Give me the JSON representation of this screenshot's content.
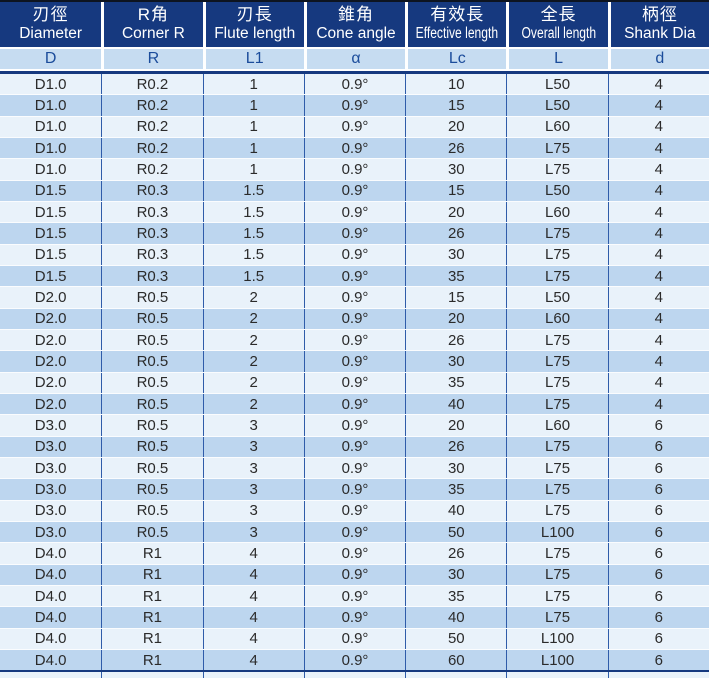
{
  "colors": {
    "header_bg": "#16397f",
    "header_text": "#ffffff",
    "units_bg": "#c6dcf1",
    "units_text": "#1b4c9b",
    "row_light": "#e9f2fa",
    "row_dark": "#bdd6ef",
    "grid_line": "#2f5ca9",
    "data_text": "#2b2b2b"
  },
  "table": {
    "columns": [
      {
        "zh": "刃徑",
        "en": "Diameter",
        "symbol": "D"
      },
      {
        "zh": "R角",
        "en": "Corner R",
        "symbol": "R"
      },
      {
        "zh": "刃長",
        "en": "Flute length",
        "symbol": "L1"
      },
      {
        "zh": "錐角",
        "en": "Cone angle",
        "symbol": "α"
      },
      {
        "zh": "有效長",
        "en": "Effective length",
        "symbol": "Lc"
      },
      {
        "zh": "全長",
        "en": "Overall length",
        "symbol": "L"
      },
      {
        "zh": "柄徑",
        "en": "Shank Dia",
        "symbol": "d"
      }
    ],
    "rows": [
      [
        "D1.0",
        "R0.2",
        "1",
        "0.9°",
        "10",
        "L50",
        "4"
      ],
      [
        "D1.0",
        "R0.2",
        "1",
        "0.9°",
        "15",
        "L50",
        "4"
      ],
      [
        "D1.0",
        "R0.2",
        "1",
        "0.9°",
        "20",
        "L60",
        "4"
      ],
      [
        "D1.0",
        "R0.2",
        "1",
        "0.9°",
        "26",
        "L75",
        "4"
      ],
      [
        "D1.0",
        "R0.2",
        "1",
        "0.9°",
        "30",
        "L75",
        "4"
      ],
      [
        "D1.5",
        "R0.3",
        "1.5",
        "0.9°",
        "15",
        "L50",
        "4"
      ],
      [
        "D1.5",
        "R0.3",
        "1.5",
        "0.9°",
        "20",
        "L60",
        "4"
      ],
      [
        "D1.5",
        "R0.3",
        "1.5",
        "0.9°",
        "26",
        "L75",
        "4"
      ],
      [
        "D1.5",
        "R0.3",
        "1.5",
        "0.9°",
        "30",
        "L75",
        "4"
      ],
      [
        "D1.5",
        "R0.3",
        "1.5",
        "0.9°",
        "35",
        "L75",
        "4"
      ],
      [
        "D2.0",
        "R0.5",
        "2",
        "0.9°",
        "15",
        "L50",
        "4"
      ],
      [
        "D2.0",
        "R0.5",
        "2",
        "0.9°",
        "20",
        "L60",
        "4"
      ],
      [
        "D2.0",
        "R0.5",
        "2",
        "0.9°",
        "26",
        "L75",
        "4"
      ],
      [
        "D2.0",
        "R0.5",
        "2",
        "0.9°",
        "30",
        "L75",
        "4"
      ],
      [
        "D2.0",
        "R0.5",
        "2",
        "0.9°",
        "35",
        "L75",
        "4"
      ],
      [
        "D2.0",
        "R0.5",
        "2",
        "0.9°",
        "40",
        "L75",
        "4"
      ],
      [
        "D3.0",
        "R0.5",
        "3",
        "0.9°",
        "20",
        "L60",
        "6"
      ],
      [
        "D3.0",
        "R0.5",
        "3",
        "0.9°",
        "26",
        "L75",
        "6"
      ],
      [
        "D3.0",
        "R0.5",
        "3",
        "0.9°",
        "30",
        "L75",
        "6"
      ],
      [
        "D3.0",
        "R0.5",
        "3",
        "0.9°",
        "35",
        "L75",
        "6"
      ],
      [
        "D3.0",
        "R0.5",
        "3",
        "0.9°",
        "40",
        "L75",
        "6"
      ],
      [
        "D3.0",
        "R0.5",
        "3",
        "0.9°",
        "50",
        "L100",
        "6"
      ],
      [
        "D4.0",
        "R1",
        "4",
        "0.9°",
        "26",
        "L75",
        "6"
      ],
      [
        "D4.0",
        "R1",
        "4",
        "0.9°",
        "30",
        "L75",
        "6"
      ],
      [
        "D4.0",
        "R1",
        "4",
        "0.9°",
        "35",
        "L75",
        "6"
      ],
      [
        "D4.0",
        "R1",
        "4",
        "0.9°",
        "40",
        "L75",
        "6"
      ],
      [
        "D4.0",
        "R1",
        "4",
        "0.9°",
        "50",
        "L100",
        "6"
      ],
      [
        "D4.0",
        "R1",
        "4",
        "0.9°",
        "60",
        "L100",
        "6"
      ]
    ]
  }
}
